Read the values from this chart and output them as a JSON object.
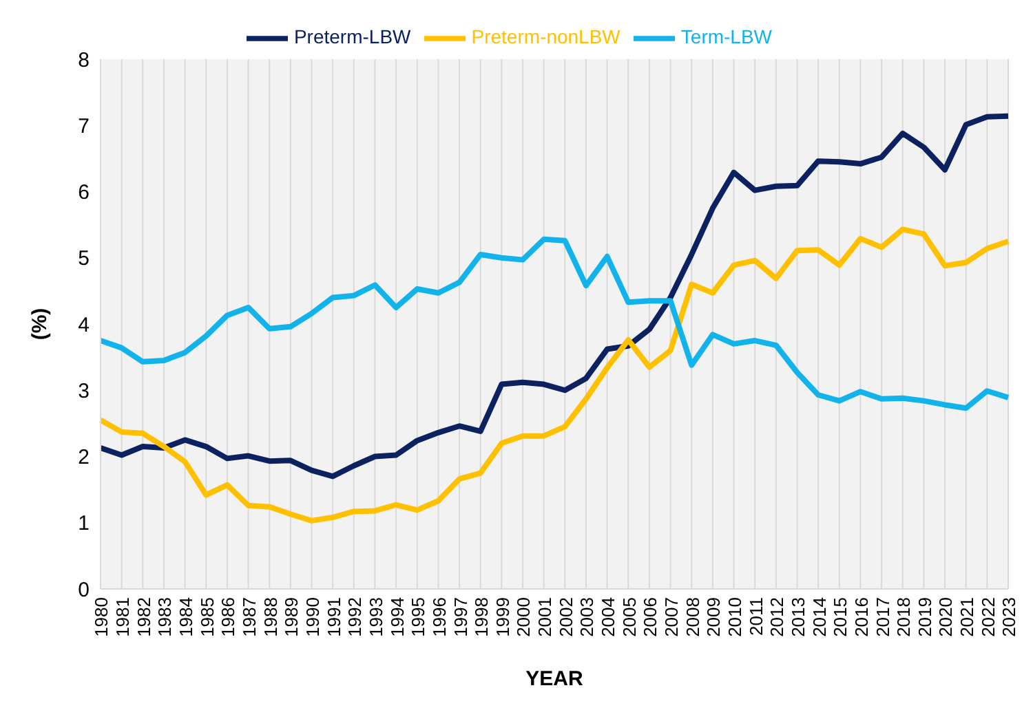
{
  "chart_data": {
    "type": "line",
    "xlabel": "YEAR",
    "ylabel": "(%)",
    "categories": [
      "1980",
      "1981",
      "1982",
      "1983",
      "1984",
      "1985",
      "1986",
      "1987",
      "1988",
      "1989",
      "1990",
      "1991",
      "1992",
      "1993",
      "1994",
      "1995",
      "1996",
      "1997",
      "1998",
      "1999",
      "2000",
      "2001",
      "2002",
      "2003",
      "2004",
      "2005",
      "2006",
      "2007",
      "2008",
      "2009",
      "2010",
      "2011",
      "2012",
      "2013",
      "2014",
      "2015",
      "2016",
      "2017",
      "2018",
      "2019",
      "2020",
      "2021",
      "2022",
      "2023"
    ],
    "series": [
      {
        "name": "Preterm-LBW",
        "color": "#0b2160",
        "values": [
          2.13,
          2.02,
          2.15,
          2.13,
          2.25,
          2.15,
          1.97,
          2.01,
          1.93,
          1.94,
          1.79,
          1.7,
          1.86,
          2.0,
          2.02,
          2.24,
          2.36,
          2.46,
          2.38,
          3.09,
          3.12,
          3.09,
          3.0,
          3.18,
          3.62,
          3.67,
          3.92,
          4.4,
          5.05,
          5.75,
          6.29,
          6.02,
          6.08,
          6.09,
          6.46,
          6.45,
          6.42,
          6.52,
          6.88,
          6.67,
          6.33,
          7.01,
          7.13,
          7.14
        ]
      },
      {
        "name": "Preterm-nonLBW",
        "color": "#ffc000",
        "values": [
          2.55,
          2.37,
          2.35,
          2.15,
          1.92,
          1.42,
          1.57,
          1.26,
          1.24,
          1.13,
          1.03,
          1.08,
          1.17,
          1.18,
          1.27,
          1.19,
          1.33,
          1.66,
          1.75,
          2.2,
          2.31,
          2.31,
          2.45,
          2.87,
          3.34,
          3.76,
          3.35,
          3.6,
          4.6,
          4.47,
          4.89,
          4.96,
          4.69,
          5.11,
          5.12,
          4.89,
          5.29,
          5.16,
          5.43,
          5.36,
          4.88,
          4.93,
          5.14,
          5.25
        ]
      },
      {
        "name": "Term-LBW",
        "color": "#12b3eb",
        "values": [
          3.75,
          3.64,
          3.43,
          3.45,
          3.57,
          3.82,
          4.13,
          4.25,
          3.93,
          3.96,
          4.16,
          4.4,
          4.43,
          4.59,
          4.25,
          4.53,
          4.47,
          4.63,
          5.05,
          5.0,
          4.97,
          5.28,
          5.26,
          4.58,
          5.02,
          4.33,
          4.35,
          4.35,
          3.38,
          3.84,
          3.7,
          3.75,
          3.68,
          3.27,
          2.93,
          2.84,
          2.98,
          2.87,
          2.88,
          2.84,
          2.78,
          2.73,
          2.99,
          2.89
        ]
      }
    ],
    "ylim": [
      0,
      8
    ],
    "yticks": [
      0,
      1,
      2,
      3,
      4,
      5,
      6,
      7,
      8
    ],
    "grid": "x",
    "legend": "top",
    "marker": "none",
    "line_style": "solid"
  }
}
